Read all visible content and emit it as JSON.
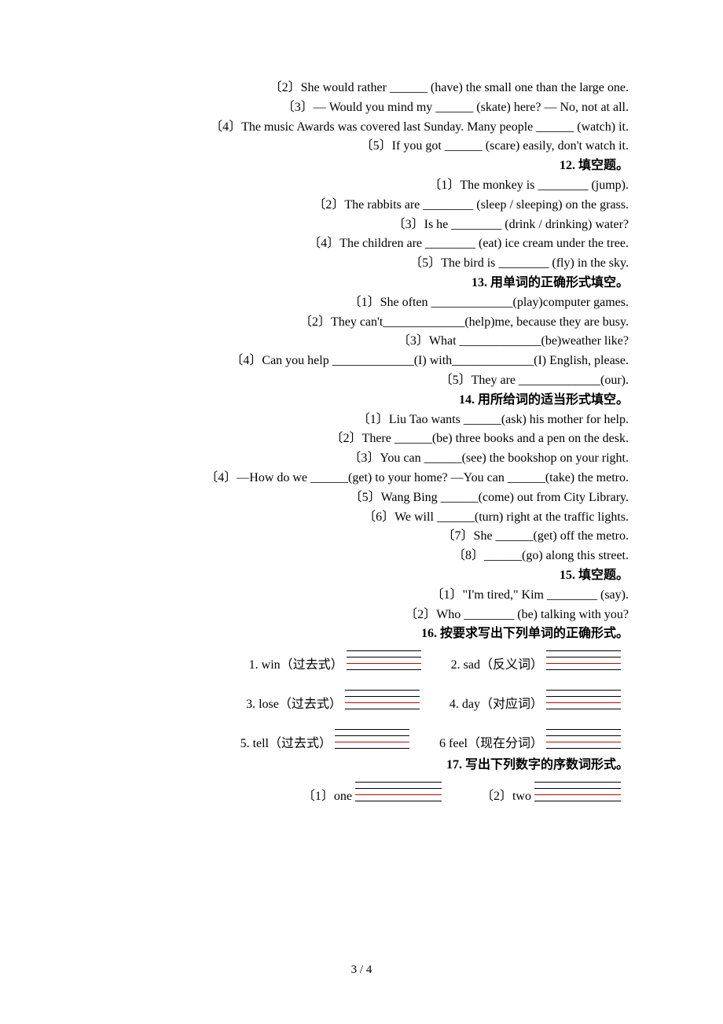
{
  "lines": [
    {
      "t": "〔2〕She would rather ______ (have) the small one than the large one."
    },
    {
      "t": "〔3〕— Would you mind my ______ (skate) here?   — No, not at all."
    },
    {
      "t": "〔4〕The music Awards was covered last Sunday. Many people ______ (watch) it."
    },
    {
      "t": "〔5〕If you got ______ (scare) easily, don't watch it."
    },
    {
      "t": "12. 填空题。",
      "b": true
    },
    {
      "t": "〔1〕The monkey is ________ (jump)."
    },
    {
      "t": "〔2〕The rabbits are ________ (sleep / sleeping) on the grass."
    },
    {
      "t": "〔3〕Is he ________ (drink / drinking) water?"
    },
    {
      "t": "〔4〕The children are ________ (eat) ice cream under the tree."
    },
    {
      "t": "〔5〕The bird is ________ (fly) in the sky."
    },
    {
      "t": "13. 用单词的正确形式填空。",
      "b": true
    },
    {
      "t": "〔1〕She often _____________(play)computer games."
    },
    {
      "t": "〔2〕They can't_____________(help)me, because they are busy."
    },
    {
      "t": "〔3〕What _____________(be)weather like?"
    },
    {
      "t": "〔4〕Can you help _____________(I) with_____________(I) English, please."
    },
    {
      "t": "〔5〕They are _____________(our)."
    },
    {
      "t": "14. 用所给词的适当形式填空。",
      "b": true
    },
    {
      "t": "〔1〕Liu Tao wants ______(ask) his mother for help."
    },
    {
      "t": "〔2〕There ______(be) three books and a pen on the desk."
    },
    {
      "t": "〔3〕You can ______(see) the bookshop on your right."
    },
    {
      "t": "〔4〕—How do we ______(get) to your home? —You can ______(take) the metro."
    },
    {
      "t": "〔5〕Wang Bing ______(come) out from City Library."
    },
    {
      "t": "〔6〕We will ______(turn) right at the traffic lights."
    },
    {
      "t": "〔7〕She ______(get) off the metro."
    },
    {
      "t": "〔8〕______(go) along this street."
    },
    {
      "t": "15. 填空题。",
      "b": true
    },
    {
      "t": "〔1〕\"I'm tired,\" Kim ________ (say)."
    },
    {
      "t": "〔2〕Who ________ (be) talking with you?"
    },
    {
      "t": "16. 按要求写出下列单词的正确形式。",
      "b": true
    }
  ],
  "pairs16": [
    {
      "l": "1. win（过去式）",
      "r": "2. sad（反义词）"
    },
    {
      "l": "3. lose（过去式）",
      "r": "4. day（对应词）"
    },
    {
      "l": "5. tell（过去式）",
      "r": "6 feel（现在分词）"
    }
  ],
  "heading17": "17. 写出下列数字的序数词形式。",
  "pairs17": [
    {
      "l": "〔1〕one",
      "r": "〔2〕two"
    }
  ],
  "page17_stackwidth": 120,
  "footer": "3 / 4"
}
